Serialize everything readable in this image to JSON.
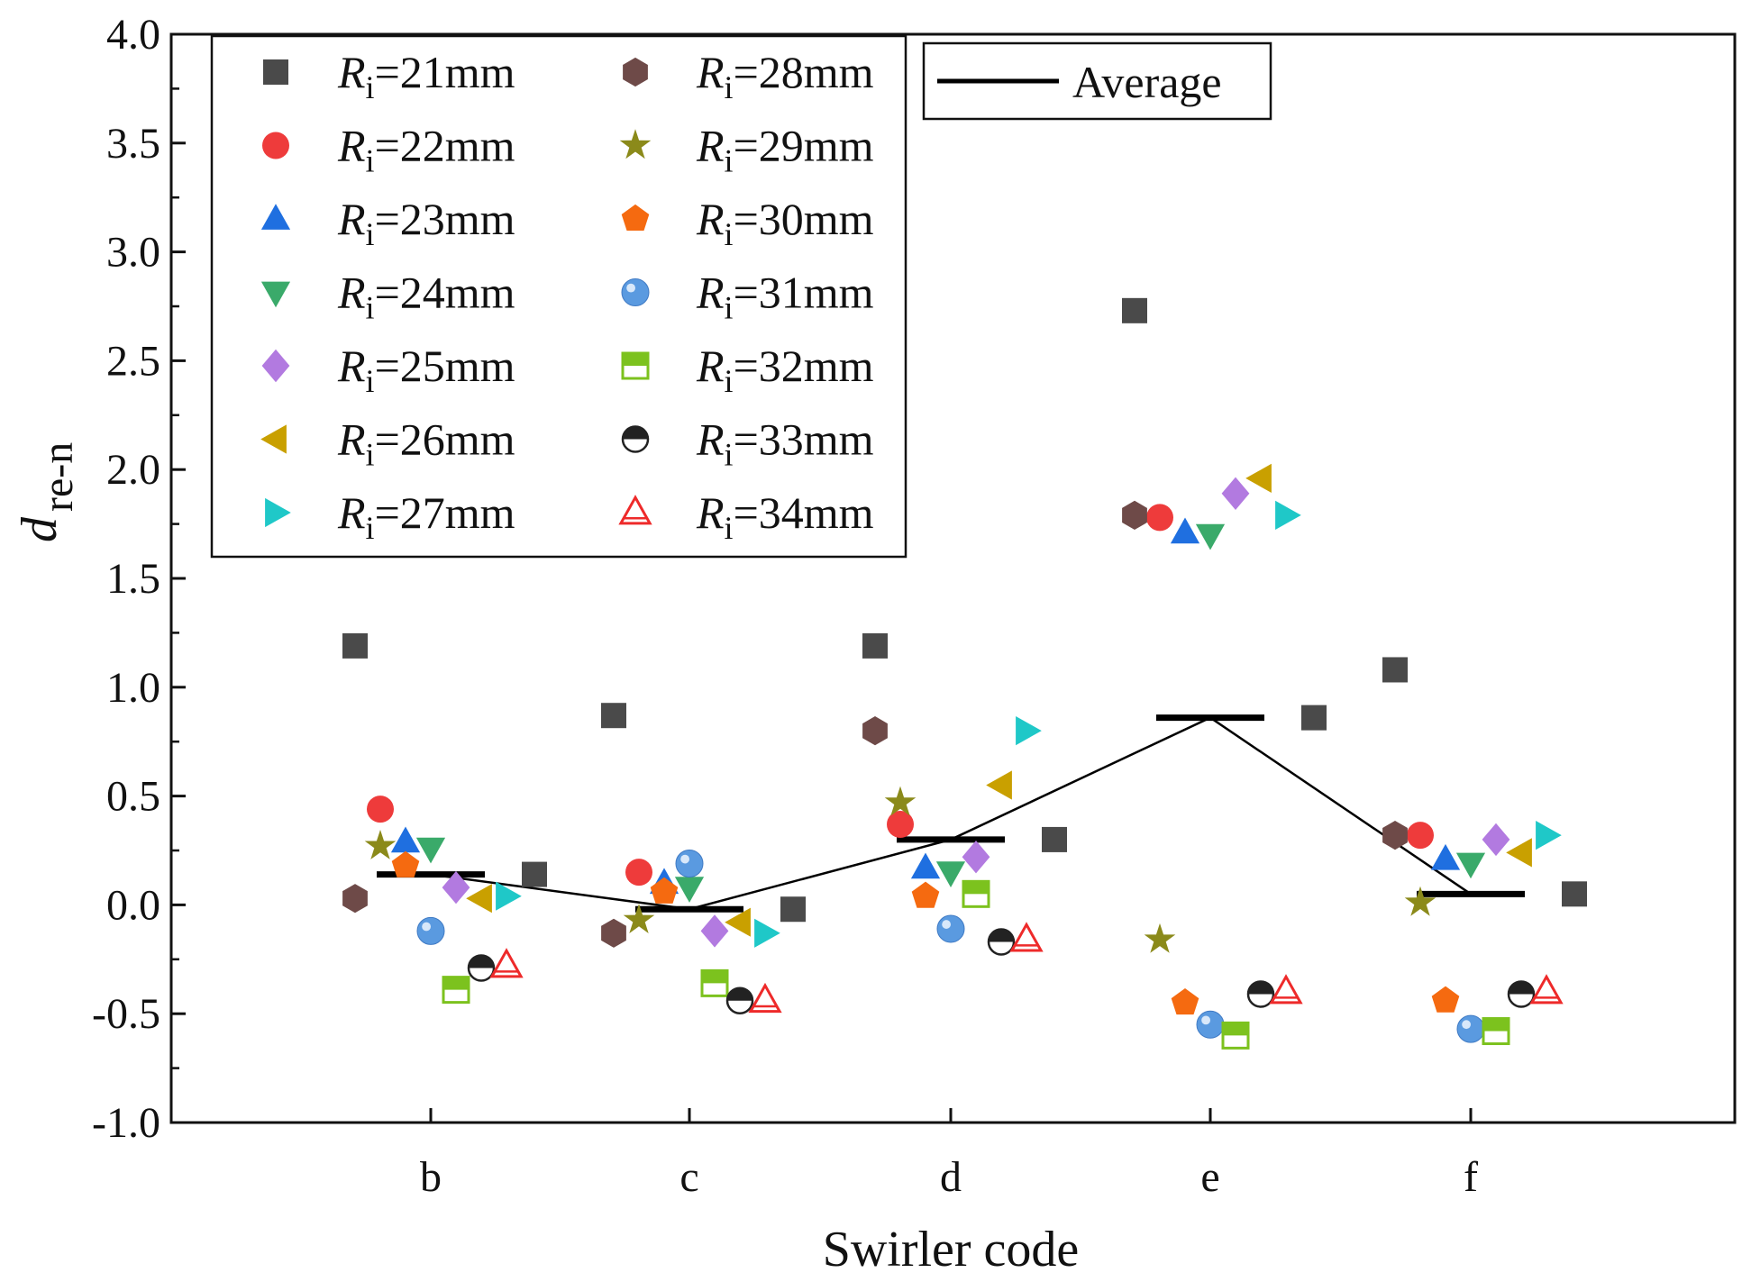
{
  "chart_data": {
    "type": "scatter",
    "xlabel": "Swirler code",
    "ylabel": {
      "main": "d",
      "sub": "re-n"
    },
    "ylim": [
      -1.0,
      4.0
    ],
    "yticks": [
      "4.0",
      "3.5",
      "3.0",
      "2.5",
      "2.0",
      "1.5",
      "1.0",
      "0.5",
      "0.0",
      "-0.5",
      "-1.0"
    ],
    "categories": [
      "b",
      "c",
      "d",
      "e",
      "f"
    ],
    "legend_prefix": "R",
    "legend_sub": "i",
    "series": [
      {
        "label": "=21mm",
        "marker": "square",
        "color": "#4a4a4a",
        "values": [
          1.19,
          0.87,
          1.19,
          2.73,
          1.08
        ],
        "extra": [
          0.14,
          -0.02,
          0.3,
          0.86,
          0.05
        ]
      },
      {
        "label": "=22mm",
        "marker": "circle",
        "color": "#ee3b3b",
        "values": [
          0.44,
          0.15,
          0.37,
          1.78,
          0.32
        ]
      },
      {
        "label": "=23mm",
        "marker": "triangle-up",
        "color": "#1f6fe0",
        "values": [
          0.29,
          0.1,
          0.17,
          1.71,
          0.21
        ]
      },
      {
        "label": "=24mm",
        "marker": "triangle-down",
        "color": "#3aaa6a",
        "values": [
          0.26,
          0.08,
          0.15,
          1.7,
          0.19
        ]
      },
      {
        "label": "=25mm",
        "marker": "diamond",
        "color": "#b27ae0",
        "values": [
          0.08,
          -0.12,
          0.22,
          1.89,
          0.3
        ]
      },
      {
        "label": "=26mm",
        "marker": "triangle-left",
        "color": "#c9a000",
        "values": [
          0.03,
          -0.08,
          0.55,
          1.96,
          0.24
        ]
      },
      {
        "label": "=27mm",
        "marker": "triangle-right",
        "color": "#1fc8c8",
        "values": [
          0.04,
          -0.13,
          0.8,
          1.79,
          0.32
        ]
      },
      {
        "label": "=28mm",
        "marker": "hexagon",
        "color": "#6e4a48",
        "values": [
          0.03,
          -0.13,
          0.8,
          1.79,
          0.32
        ]
      },
      {
        "label": "=29mm",
        "marker": "star",
        "color": "#8b8a1a",
        "values": [
          0.27,
          -0.07,
          0.47,
          -0.16,
          0.01
        ]
      },
      {
        "label": "=30mm",
        "marker": "pentagon",
        "color": "#f56a10",
        "values": [
          0.18,
          0.06,
          0.04,
          -0.45,
          -0.44
        ]
      },
      {
        "label": "=31mm",
        "marker": "sphere",
        "color": "#5a9ae0",
        "values": [
          -0.12,
          0.19,
          -0.11,
          -0.55,
          -0.57
        ]
      },
      {
        "label": "=32mm",
        "marker": "half-square",
        "color": "#7cc21e",
        "values": [
          -0.39,
          -0.36,
          0.05,
          -0.6,
          -0.58
        ]
      },
      {
        "label": "=33mm",
        "marker": "half-circle",
        "color": "#222222",
        "values": [
          -0.29,
          -0.44,
          -0.17,
          -0.41,
          -0.41
        ]
      },
      {
        "label": "=34mm",
        "marker": "open-triangle",
        "color": "#ee2a2a",
        "values": [
          -0.28,
          -0.44,
          -0.16,
          -0.4,
          -0.4
        ]
      }
    ],
    "average": {
      "label": "Average",
      "color": "#000000",
      "values": [
        0.14,
        -0.02,
        0.3,
        0.86,
        0.05
      ]
    }
  }
}
